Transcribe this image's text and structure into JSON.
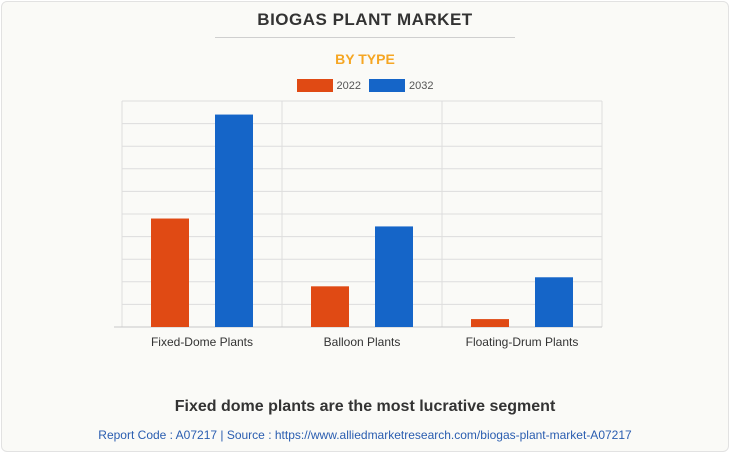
{
  "header": {
    "title": "BIOGAS PLANT MARKET",
    "subtitle": "BY TYPE"
  },
  "colors": {
    "subtitle": "#f5a623",
    "series_2022": "#e04a14",
    "series_2032": "#1565c8",
    "grid": "#dddddd"
  },
  "chart_data": {
    "type": "bar",
    "categories": [
      "Fixed-Dome Plants",
      "Balloon Plants",
      "Floating-Drum Plants"
    ],
    "series": [
      {
        "name": "2022",
        "values": [
          48,
          18,
          3.5
        ]
      },
      {
        "name": "2032",
        "values": [
          94,
          44.5,
          22
        ]
      }
    ],
    "ylim": [
      0,
      100
    ],
    "grid": true,
    "legend": "top-center"
  },
  "caption": "Fixed dome plants are the most lucrative segment",
  "footer": "Report Code : A07217  |  Source : https://www.alliedmarketresearch.com/biogas-plant-market-A07217"
}
